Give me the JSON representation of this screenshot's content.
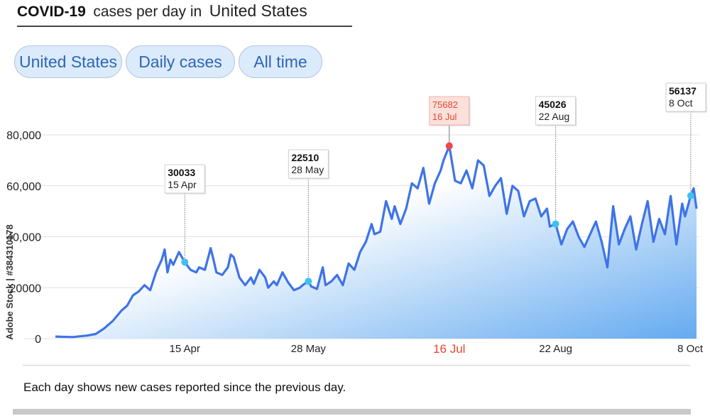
{
  "header": {
    "title_main": "COVID-19",
    "title_mid": "cases per day in",
    "title_country": "United States"
  },
  "filters": {
    "country": "United States",
    "metric": "Daily cases",
    "range": "All time"
  },
  "footnote": "Each day shows new cases reported since the previous day.",
  "side_id": "Adobe Stock | #384310178",
  "colors": {
    "line": "#3e73e8",
    "area_top": "#ffffff",
    "area_bottom": "#64aaf0",
    "marker": "#3fc1ef",
    "peak": "#f04747",
    "peak_label_bg": "#fbe0dc",
    "highlight_text": "#e8482f"
  },
  "chart_data": {
    "type": "area",
    "title": "COVID-19 cases per day in United States",
    "ylim": [
      0,
      82000
    ],
    "yticks": [
      {
        "value": 0,
        "label": "0"
      },
      {
        "value": 20000,
        "label": "20000"
      },
      {
        "value": 40000,
        "label": "40,000"
      },
      {
        "value": 60000,
        "label": "60,000"
      },
      {
        "value": 80000,
        "label": "80,000"
      }
    ],
    "grid": true,
    "xtick_labels": [
      {
        "date": "2020-04-15",
        "label": "15 Apr",
        "highlight": false
      },
      {
        "date": "2020-05-28",
        "label": "28 May",
        "highlight": false
      },
      {
        "date": "2020-07-16",
        "label": "16 Jul",
        "highlight": true
      },
      {
        "date": "2020-08-22",
        "label": "22 Aug",
        "highlight": false
      },
      {
        "date": "2020-10-08",
        "label": "8 Oct",
        "highlight": false
      }
    ],
    "annotations": [
      {
        "date": "2020-04-15",
        "value": 30033,
        "value_label": "30033",
        "date_label": "15 Apr",
        "peak": false
      },
      {
        "date": "2020-05-28",
        "value": 22510,
        "value_label": "22510",
        "date_label": "28 May",
        "peak": false
      },
      {
        "date": "2020-07-16",
        "value": 75682,
        "value_label": "75682",
        "date_label": "16 Jul",
        "peak": true
      },
      {
        "date": "2020-08-22",
        "value": 45026,
        "value_label": "45026",
        "date_label": "22 Aug",
        "peak": false
      },
      {
        "date": "2020-10-08",
        "value": 56137,
        "value_label": "56137",
        "date_label": "8 Oct",
        "peak": false
      }
    ],
    "series": [
      {
        "x": [
          "2020-03-01",
          "2020-03-07",
          "2020-03-12",
          "2020-03-15",
          "2020-03-18",
          "2020-03-21",
          "2020-03-24",
          "2020-03-26",
          "2020-03-28",
          "2020-03-30",
          "2020-04-01",
          "2020-04-03",
          "2020-04-05",
          "2020-04-07",
          "2020-04-08",
          "2020-04-09",
          "2020-04-10",
          "2020-04-11",
          "2020-04-13",
          "2020-04-15",
          "2020-04-17",
          "2020-04-19",
          "2020-04-20",
          "2020-04-22",
          "2020-04-24",
          "2020-04-25",
          "2020-04-26",
          "2020-04-28",
          "2020-04-30",
          "2020-05-01",
          "2020-05-02",
          "2020-05-04",
          "2020-05-06",
          "2020-05-08",
          "2020-05-09",
          "2020-05-11",
          "2020-05-13",
          "2020-05-14",
          "2020-05-16",
          "2020-05-17",
          "2020-05-19",
          "2020-05-21",
          "2020-05-23",
          "2020-05-25",
          "2020-05-26",
          "2020-05-28",
          "2020-05-29",
          "2020-05-31",
          "2020-06-02",
          "2020-06-03",
          "2020-06-05",
          "2020-06-07",
          "2020-06-09",
          "2020-06-11",
          "2020-06-13",
          "2020-06-15",
          "2020-06-17",
          "2020-06-19",
          "2020-06-20",
          "2020-06-22",
          "2020-06-24",
          "2020-06-26",
          "2020-06-27",
          "2020-06-29",
          "2020-07-01",
          "2020-07-03",
          "2020-07-05",
          "2020-07-07",
          "2020-07-09",
          "2020-07-11",
          "2020-07-13",
          "2020-07-14",
          "2020-07-16",
          "2020-07-18",
          "2020-07-20",
          "2020-07-22",
          "2020-07-24",
          "2020-07-26",
          "2020-07-28",
          "2020-07-30",
          "2020-08-01",
          "2020-08-03",
          "2020-08-05",
          "2020-08-07",
          "2020-08-09",
          "2020-08-11",
          "2020-08-13",
          "2020-08-15",
          "2020-08-17",
          "2020-08-19",
          "2020-08-20",
          "2020-08-22",
          "2020-08-24",
          "2020-08-26",
          "2020-08-28",
          "2020-08-30",
          "2020-09-01",
          "2020-09-03",
          "2020-09-05",
          "2020-09-07",
          "2020-09-09",
          "2020-09-11",
          "2020-09-13",
          "2020-09-15",
          "2020-09-17",
          "2020-09-19",
          "2020-09-21",
          "2020-09-23",
          "2020-09-25",
          "2020-09-27",
          "2020-09-29",
          "2020-10-01",
          "2020-10-03",
          "2020-10-05",
          "2020-10-06",
          "2020-10-08",
          "2020-10-09",
          "2020-10-10"
        ],
        "values": [
          800,
          600,
          1200,
          1800,
          4000,
          7000,
          11000,
          13000,
          17000,
          18500,
          21000,
          19000,
          26000,
          31000,
          35000,
          26000,
          31000,
          29000,
          34000,
          30033,
          27000,
          26000,
          28000,
          27000,
          35500,
          31000,
          26000,
          25000,
          28000,
          33000,
          32000,
          24000,
          21000,
          24000,
          21500,
          27000,
          24000,
          20000,
          22500,
          21000,
          26000,
          22000,
          19000,
          20000,
          21000,
          22510,
          20500,
          19500,
          28000,
          21000,
          22500,
          25000,
          21000,
          29500,
          27000,
          34000,
          38000,
          45000,
          41000,
          42000,
          54000,
          47000,
          52000,
          45000,
          51000,
          61000,
          59000,
          67000,
          53000,
          61000,
          66000,
          70000,
          75682,
          62000,
          61000,
          66000,
          59000,
          70000,
          68000,
          56000,
          60000,
          63000,
          49000,
          60000,
          58000,
          48000,
          54000,
          55000,
          48000,
          51000,
          44000,
          45026,
          37000,
          43000,
          46000,
          40000,
          36000,
          41000,
          46000,
          38000,
          28000,
          52000,
          37000,
          43000,
          48000,
          35000,
          45000,
          54000,
          38000,
          47000,
          41000,
          56000,
          37000,
          53000,
          48000,
          56137,
          59000,
          51000
        ]
      }
    ]
  }
}
